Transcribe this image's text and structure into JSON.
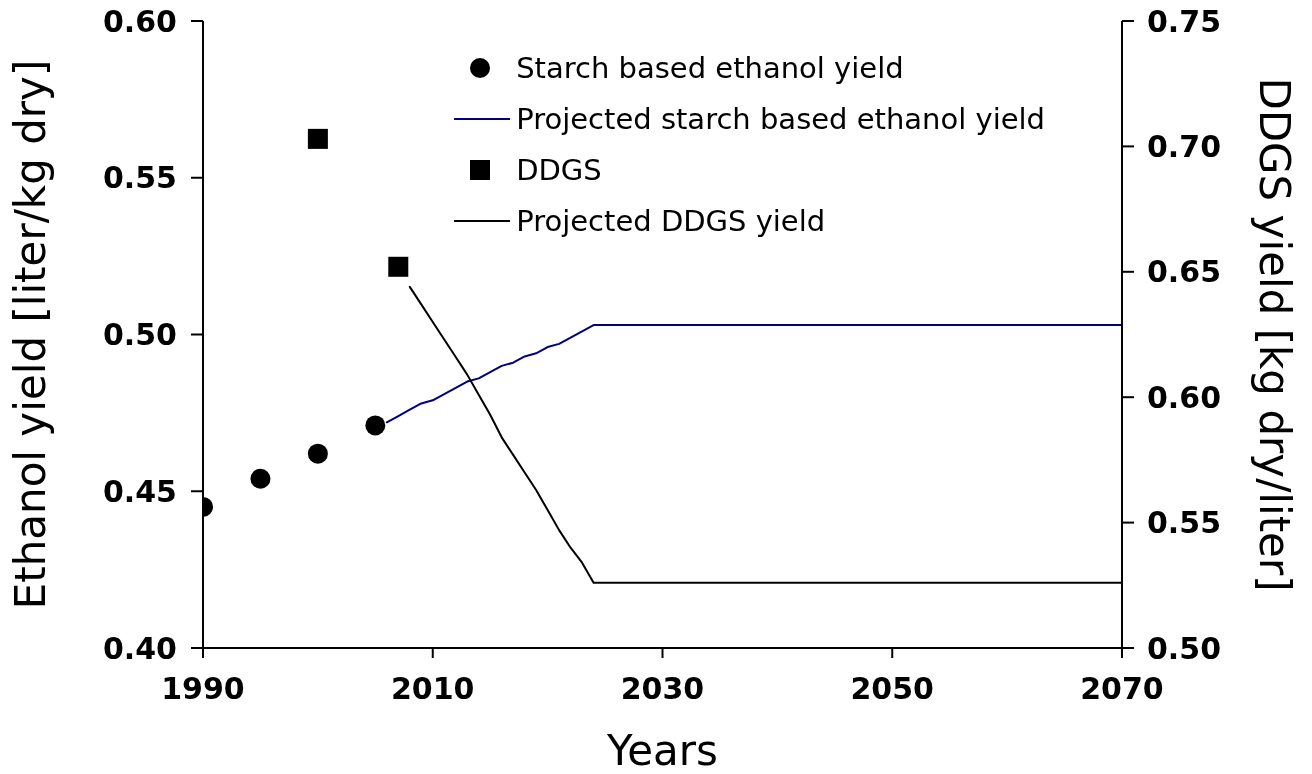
{
  "chart_data": {
    "type": "scatter",
    "xlabel": "Years",
    "ylabel": "Ethanol yield [liter/kg dry]",
    "y2label": "DDGS yield [kg dry/liter]",
    "xlim": [
      1990,
      2070
    ],
    "xticks": [
      1990,
      2010,
      2030,
      2050,
      2070
    ],
    "ylim": [
      0.4,
      0.6
    ],
    "yticks": [
      {
        "value": 0.4,
        "label": "0.40"
      },
      0.45,
      {
        "value": 0.5,
        "label": "0.50"
      },
      0.55,
      {
        "value": 0.6,
        "label": "0.60"
      }
    ],
    "y2lim": [
      0.5,
      0.75
    ],
    "y2ticks": [
      {
        "value": 0.5,
        "label": "0.50"
      },
      0.55,
      {
        "value": 0.6,
        "label": "0.60"
      },
      0.65,
      {
        "value": 0.7,
        "label": "0.70"
      },
      0.75
    ],
    "legend": "top right",
    "series": [
      {
        "name": "Starch based ethanol yield",
        "marker": "circle",
        "color": "#000000",
        "x": [
          1990,
          1995,
          2000,
          2005
        ],
        "values": [
          0.445,
          0.454,
          0.462,
          0.471
        ]
      },
      {
        "name": "Projected starch based ethanol yield",
        "type": "line",
        "color": "#000080",
        "x": [
          2006,
          2007,
          2008,
          2009,
          2010,
          2011,
          2012,
          2013,
          2014,
          2015,
          2016,
          2017,
          2018,
          2019,
          2020,
          2021,
          2022,
          2023,
          2024,
          2070
        ],
        "values": [
          0.472,
          0.474,
          0.476,
          0.478,
          0.479,
          0.481,
          0.483,
          0.485,
          0.486,
          0.488,
          0.49,
          0.491,
          0.493,
          0.494,
          0.496,
          0.497,
          0.499,
          0.501,
          0.503,
          0.503
        ]
      },
      {
        "name": "DDGS",
        "marker": "square",
        "axis": "y2",
        "color": "#000000",
        "x": [
          2000,
          2007
        ],
        "values": [
          0.703,
          0.652
        ]
      },
      {
        "name": "Projected DDGS yield",
        "type": "line",
        "axis": "y2",
        "color": "#000000",
        "x": [
          2008,
          2009,
          2010,
          2011,
          2012,
          2013,
          2014,
          2015,
          2016,
          2017,
          2018,
          2019,
          2020,
          2021,
          2022,
          2023,
          2024,
          2070
        ],
        "values": [
          0.644,
          0.637,
          0.63,
          0.623,
          0.616,
          0.609,
          0.601,
          0.593,
          0.584,
          0.577,
          0.57,
          0.563,
          0.555,
          0.547,
          0.54,
          0.534,
          0.526,
          0.526
        ]
      }
    ]
  }
}
